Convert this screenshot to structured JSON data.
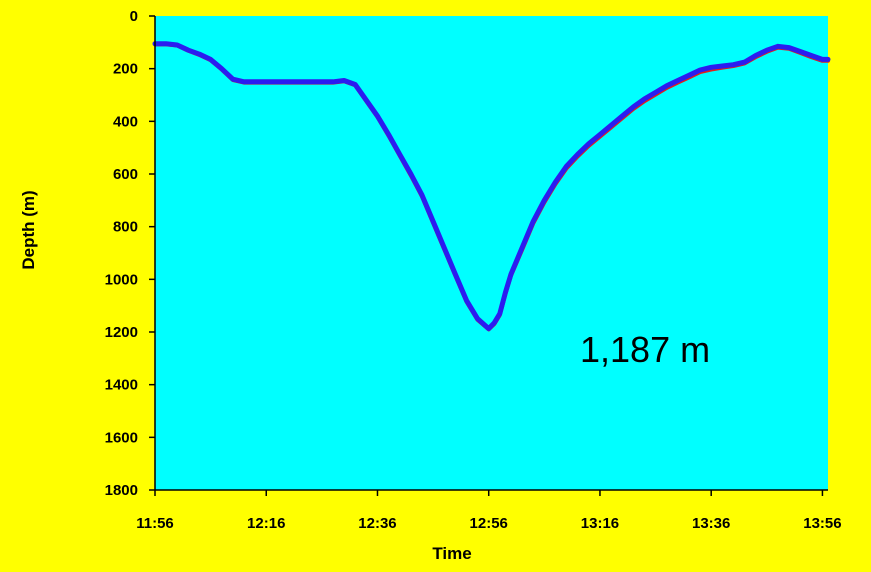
{
  "colors": {
    "background": "#ffff00",
    "plot_area": "#00ffff",
    "primary_line": "#2b1cf0",
    "secondary_line": "#e0201a",
    "axis": "#000000"
  },
  "chart_data": {
    "type": "line",
    "xlabel": "Time",
    "ylabel": "Depth (m)",
    "x_ticks": [
      "11:56",
      "12:16",
      "12:36",
      "12:56",
      "13:16",
      "13:36",
      "13:56"
    ],
    "y_ticks": [
      "0",
      "200",
      "400",
      "600",
      "800",
      "1000",
      "1200",
      "1400",
      "1600",
      "1800"
    ],
    "ylim": [
      0,
      1800
    ],
    "y_inverted": true,
    "xlim": [
      "11:56",
      "13:57"
    ],
    "grid": false,
    "annotation": "1,187 m",
    "series": [
      {
        "x": [
          "11:56",
          "11:58",
          "12:00",
          "12:02",
          "12:04",
          "12:06",
          "12:08",
          "12:10",
          "12:12",
          "12:14",
          "12:16",
          "12:18",
          "12:20",
          "12:22",
          "12:24",
          "12:26",
          "12:28",
          "12:30",
          "12:32",
          "12:34",
          "12:36",
          "12:38",
          "12:40",
          "12:42",
          "12:44",
          "12:46",
          "12:48",
          "12:50",
          "12:52",
          "12:54",
          "12:56",
          "12:57",
          "12:58",
          "12:59",
          "13:00",
          "13:02",
          "13:04",
          "13:06",
          "13:08",
          "13:10",
          "13:12",
          "13:14",
          "13:16",
          "13:18",
          "13:20",
          "13:22",
          "13:24",
          "13:26",
          "13:28",
          "13:30",
          "13:32",
          "13:34",
          "13:36",
          "13:38",
          "13:40",
          "13:42",
          "13:44",
          "13:46",
          "13:48",
          "13:50",
          "13:52",
          "13:54",
          "13:56",
          "13:57"
        ],
        "y": [
          105,
          105,
          110,
          130,
          145,
          165,
          200,
          240,
          250,
          250,
          250,
          250,
          250,
          250,
          250,
          250,
          250,
          245,
          260,
          320,
          380,
          450,
          525,
          600,
          680,
          780,
          880,
          980,
          1080,
          1150,
          1187,
          1165,
          1130,
          1050,
          980,
          880,
          780,
          700,
          630,
          570,
          525,
          485,
          450,
          415,
          380,
          345,
          315,
          290,
          265,
          245,
          225,
          205,
          195,
          190,
          185,
          175,
          150,
          130,
          115,
          120,
          135,
          150,
          165,
          165
        ]
      },
      {
        "x": [
          "11:56",
          "11:58",
          "12:00",
          "12:02",
          "12:04",
          "12:06",
          "12:08",
          "12:10",
          "12:12",
          "12:14",
          "12:16",
          "12:18",
          "12:20",
          "12:22",
          "12:24",
          "12:26",
          "12:28",
          "12:30",
          "12:32",
          "12:34",
          "12:36",
          "12:38",
          "12:40",
          "12:42",
          "12:44",
          "12:46",
          "12:48",
          "12:50",
          "12:52",
          "12:54",
          "12:56",
          "12:57",
          "12:58",
          "12:59",
          "13:00",
          "13:02",
          "13:04",
          "13:06",
          "13:08",
          "13:10",
          "13:12",
          "13:14",
          "13:16",
          "13:18",
          "13:20",
          "13:22",
          "13:24",
          "13:26",
          "13:28",
          "13:30",
          "13:32",
          "13:34",
          "13:36",
          "13:38",
          "13:40",
          "13:42",
          "13:44",
          "13:46",
          "13:48",
          "13:50",
          "13:52",
          "13:54",
          "13:56",
          "13:57"
        ],
        "y": [
          108,
          108,
          112,
          132,
          148,
          168,
          203,
          243,
          253,
          253,
          253,
          253,
          253,
          253,
          253,
          253,
          253,
          248,
          263,
          324,
          384,
          455,
          530,
          606,
          686,
          786,
          886,
          986,
          1085,
          1154,
          1190,
          1170,
          1136,
          1056,
          986,
          888,
          788,
          708,
          638,
          578,
          533,
          493,
          458,
          423,
          388,
          353,
          323,
          298,
          273,
          253,
          233,
          213,
          203,
          196,
          190,
          180,
          156,
          136,
          120,
          124,
          140,
          156,
          170,
          170
        ]
      }
    ]
  }
}
